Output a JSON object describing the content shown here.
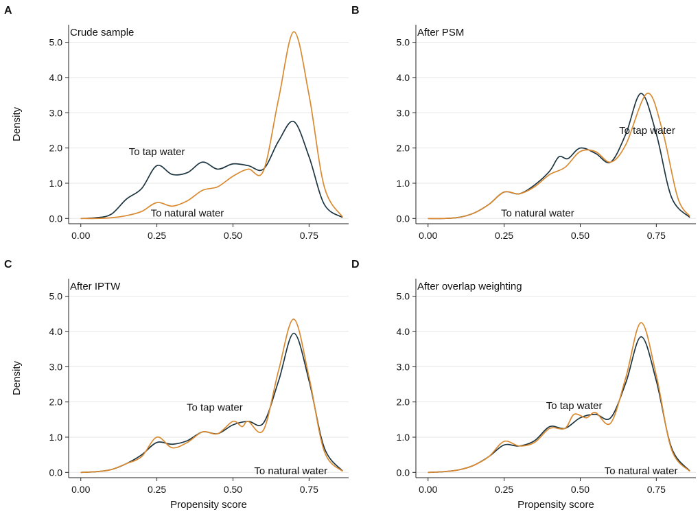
{
  "figure": {
    "colors": {
      "tap": "#1d3540",
      "natural": "#d9892f"
    },
    "series_names": [
      "To tap water",
      "To natural water"
    ]
  },
  "chart_data": [
    {
      "type": "line",
      "letter": "A",
      "title": "Crude sample",
      "xlabel": "",
      "ylabel": "Density",
      "xlim": [
        -0.04,
        0.88
      ],
      "ylim": [
        -0.15,
        5.5
      ],
      "xticks": [
        0.0,
        0.25,
        0.5,
        0.75
      ],
      "xtick_labels": [
        "0.00",
        "0.25",
        "0.50",
        "0.75"
      ],
      "yticks": [
        0,
        1,
        2,
        3,
        4,
        5
      ],
      "ytick_labels": [
        "0.0",
        "1.0",
        "2.0",
        "3.0",
        "4.0",
        "5.0"
      ],
      "grid": "horizontal",
      "series": [
        {
          "name": "To tap water",
          "color": "#1d3540",
          "x": [
            0.0,
            0.05,
            0.1,
            0.15,
            0.2,
            0.25,
            0.3,
            0.35,
            0.4,
            0.45,
            0.5,
            0.55,
            0.6,
            0.65,
            0.7,
            0.75,
            0.8,
            0.86
          ],
          "y": [
            0.0,
            0.02,
            0.12,
            0.55,
            0.85,
            1.5,
            1.25,
            1.3,
            1.6,
            1.4,
            1.55,
            1.5,
            1.4,
            2.2,
            2.75,
            1.75,
            0.4,
            0.03
          ]
        },
        {
          "name": "To natural water",
          "color": "#d9892f",
          "x": [
            0.0,
            0.05,
            0.1,
            0.15,
            0.2,
            0.25,
            0.3,
            0.35,
            0.4,
            0.45,
            0.5,
            0.55,
            0.6,
            0.65,
            0.7,
            0.75,
            0.8,
            0.86
          ],
          "y": [
            0.0,
            0.0,
            0.02,
            0.08,
            0.2,
            0.45,
            0.35,
            0.5,
            0.8,
            0.9,
            1.2,
            1.4,
            1.35,
            3.4,
            5.3,
            3.5,
            0.9,
            0.04
          ]
        }
      ],
      "annotations": [
        {
          "text": "To tap water",
          "x": 0.25,
          "y": 1.8
        },
        {
          "text": "To natural water",
          "x": 0.35,
          "y": 0.05
        }
      ]
    },
    {
      "type": "line",
      "letter": "B",
      "title": "After PSM",
      "xlabel": "",
      "ylabel": "",
      "xlim": [
        -0.04,
        0.88
      ],
      "ylim": [
        -0.15,
        5.5
      ],
      "xticks": [
        0.0,
        0.25,
        0.5,
        0.75
      ],
      "xtick_labels": [
        "0.00",
        "0.25",
        "0.50",
        "0.75"
      ],
      "yticks": [
        0,
        1,
        2,
        3,
        4,
        5
      ],
      "ytick_labels": [
        "0.0",
        "1.0",
        "2.0",
        "3.0",
        "4.0",
        "5.0"
      ],
      "grid": "horizontal",
      "series": [
        {
          "name": "To tap water",
          "color": "#1d3540",
          "x": [
            0.0,
            0.05,
            0.1,
            0.15,
            0.2,
            0.25,
            0.3,
            0.35,
            0.4,
            0.43,
            0.46,
            0.5,
            0.55,
            0.6,
            0.65,
            0.7,
            0.75,
            0.8,
            0.86
          ],
          "y": [
            0.0,
            0.0,
            0.03,
            0.15,
            0.4,
            0.75,
            0.7,
            0.95,
            1.35,
            1.75,
            1.7,
            2.0,
            1.85,
            1.6,
            2.4,
            3.55,
            2.4,
            0.6,
            0.03
          ]
        },
        {
          "name": "To natural water",
          "color": "#d9892f",
          "x": [
            0.0,
            0.05,
            0.1,
            0.15,
            0.2,
            0.25,
            0.3,
            0.35,
            0.4,
            0.45,
            0.5,
            0.55,
            0.6,
            0.65,
            0.72,
            0.77,
            0.82,
            0.86
          ],
          "y": [
            0.0,
            0.0,
            0.03,
            0.15,
            0.4,
            0.75,
            0.7,
            0.9,
            1.25,
            1.45,
            1.9,
            1.9,
            1.6,
            2.1,
            3.55,
            2.5,
            0.6,
            0.06
          ]
        }
      ],
      "annotations": [
        {
          "text": "To tap water",
          "x": 0.72,
          "y": 2.4
        },
        {
          "text": "To natural water",
          "x": 0.36,
          "y": 0.05
        }
      ]
    },
    {
      "type": "line",
      "letter": "C",
      "title": "After IPTW",
      "xlabel": "Propensity score",
      "ylabel": "Density",
      "xlim": [
        -0.04,
        0.88
      ],
      "ylim": [
        -0.15,
        5.5
      ],
      "xticks": [
        0.0,
        0.25,
        0.5,
        0.75
      ],
      "xtick_labels": [
        "0.00",
        "0.25",
        "0.50",
        "0.75"
      ],
      "yticks": [
        0,
        1,
        2,
        3,
        4,
        5
      ],
      "ytick_labels": [
        "0.0",
        "1.0",
        "2.0",
        "3.0",
        "4.0",
        "5.0"
      ],
      "grid": "horizontal",
      "series": [
        {
          "name": "To tap water",
          "color": "#1d3540",
          "x": [
            0.0,
            0.05,
            0.1,
            0.15,
            0.2,
            0.25,
            0.3,
            0.35,
            0.4,
            0.45,
            0.5,
            0.55,
            0.6,
            0.65,
            0.7,
            0.75,
            0.8,
            0.86
          ],
          "y": [
            0.0,
            0.02,
            0.08,
            0.25,
            0.5,
            0.85,
            0.8,
            0.9,
            1.15,
            1.1,
            1.35,
            1.45,
            1.4,
            2.6,
            3.95,
            2.6,
            0.7,
            0.04
          ]
        },
        {
          "name": "To natural water",
          "color": "#d9892f",
          "x": [
            0.0,
            0.05,
            0.1,
            0.15,
            0.2,
            0.25,
            0.3,
            0.35,
            0.4,
            0.45,
            0.5,
            0.53,
            0.55,
            0.6,
            0.65,
            0.7,
            0.75,
            0.8,
            0.86
          ],
          "y": [
            0.0,
            0.02,
            0.08,
            0.25,
            0.45,
            1.0,
            0.7,
            0.85,
            1.15,
            1.1,
            1.45,
            1.3,
            1.45,
            1.2,
            2.9,
            4.35,
            2.7,
            0.6,
            0.03
          ]
        }
      ],
      "annotations": [
        {
          "text": "To tap water",
          "x": 0.44,
          "y": 1.75
        },
        {
          "text": "To natural water",
          "x": 0.69,
          "y": -0.05
        }
      ]
    },
    {
      "type": "line",
      "letter": "D",
      "title": "After overlap weighting",
      "xlabel": "Propensity score",
      "ylabel": "",
      "xlim": [
        -0.04,
        0.88
      ],
      "ylim": [
        -0.15,
        5.5
      ],
      "xticks": [
        0.0,
        0.25,
        0.5,
        0.75
      ],
      "xtick_labels": [
        "0.00",
        "0.25",
        "0.50",
        "0.75"
      ],
      "yticks": [
        0,
        1,
        2,
        3,
        4,
        5
      ],
      "ytick_labels": [
        "0.0",
        "1.0",
        "2.0",
        "3.0",
        "4.0",
        "5.0"
      ],
      "grid": "horizontal",
      "series": [
        {
          "name": "To tap water",
          "color": "#1d3540",
          "x": [
            0.0,
            0.05,
            0.1,
            0.15,
            0.2,
            0.25,
            0.3,
            0.35,
            0.4,
            0.45,
            0.5,
            0.55,
            0.6,
            0.65,
            0.7,
            0.75,
            0.8,
            0.86
          ],
          "y": [
            0.0,
            0.02,
            0.07,
            0.2,
            0.45,
            0.78,
            0.75,
            0.9,
            1.3,
            1.25,
            1.55,
            1.65,
            1.55,
            2.55,
            3.85,
            2.6,
            0.7,
            0.04
          ]
        },
        {
          "name": "To natural water",
          "color": "#d9892f",
          "x": [
            0.0,
            0.05,
            0.1,
            0.15,
            0.2,
            0.25,
            0.3,
            0.35,
            0.4,
            0.45,
            0.48,
            0.52,
            0.55,
            0.6,
            0.65,
            0.7,
            0.75,
            0.8,
            0.86
          ],
          "y": [
            0.0,
            0.02,
            0.07,
            0.2,
            0.45,
            0.88,
            0.75,
            0.85,
            1.25,
            1.25,
            1.65,
            1.55,
            1.7,
            1.4,
            2.7,
            4.25,
            2.75,
            0.65,
            0.03
          ]
        }
      ],
      "annotations": [
        {
          "text": "To tap water",
          "x": 0.48,
          "y": 1.8
        },
        {
          "text": "To natural water",
          "x": 0.7,
          "y": -0.05
        }
      ]
    }
  ]
}
